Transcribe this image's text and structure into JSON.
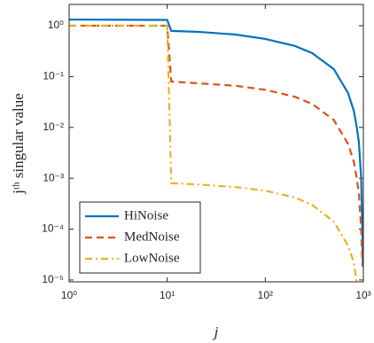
{
  "chart_data": {
    "type": "line",
    "xlabel": "j",
    "ylabel": "jᵗʰ singular value",
    "xscale": "log",
    "yscale": "log",
    "x": [
      1,
      10,
      11,
      20,
      50,
      100,
      200,
      300,
      500,
      700,
      800,
      850,
      900,
      950,
      980,
      990
    ],
    "series": [
      {
        "name": "HiNoise",
        "color": "#0072bd",
        "dash": "solid",
        "values": [
          1.32,
          1.3,
          0.79,
          0.76,
          0.67,
          0.55,
          0.4,
          0.29,
          0.14,
          0.047,
          0.021,
          0.011,
          0.0052,
          0.001,
          8e-05,
          1.8e-05
        ]
      },
      {
        "name": "MedNoise",
        "color": "#d95319",
        "dash": "dashed",
        "values": [
          1.0,
          1.0,
          0.08,
          0.074,
          0.066,
          0.055,
          0.04,
          0.029,
          0.014,
          0.0047,
          0.0021,
          0.0011,
          0.00052,
          0.0001,
          1.9e-05,
          null
        ]
      },
      {
        "name": "LowNoise",
        "color": "#edb120",
        "dash": "dashdot",
        "values": [
          1.0,
          1.0,
          0.0008,
          0.00076,
          0.00067,
          0.00057,
          0.00042,
          0.0003,
          0.00014,
          4.7e-05,
          2.2e-05,
          9.4e-06,
          null,
          null,
          null,
          null
        ]
      }
    ],
    "xlim": [
      1,
      1000
    ],
    "ylim": [
      9.2e-06,
      2.62
    ],
    "xticks": [
      {
        "value": 1,
        "label": "10⁰"
      },
      {
        "value": 10,
        "label": "10¹"
      },
      {
        "value": 100,
        "label": "10²"
      },
      {
        "value": 1000,
        "label": "10³"
      }
    ],
    "yticks": [
      {
        "value": 1e-05,
        "label": "10⁻⁵"
      },
      {
        "value": 0.0001,
        "label": "10⁻⁴"
      },
      {
        "value": 0.001,
        "label": "10⁻³"
      },
      {
        "value": 0.01,
        "label": "10⁻²"
      },
      {
        "value": 0.1,
        "label": "10⁻¹"
      },
      {
        "value": 1,
        "label": "10⁰"
      }
    ],
    "legend": "lower left"
  }
}
